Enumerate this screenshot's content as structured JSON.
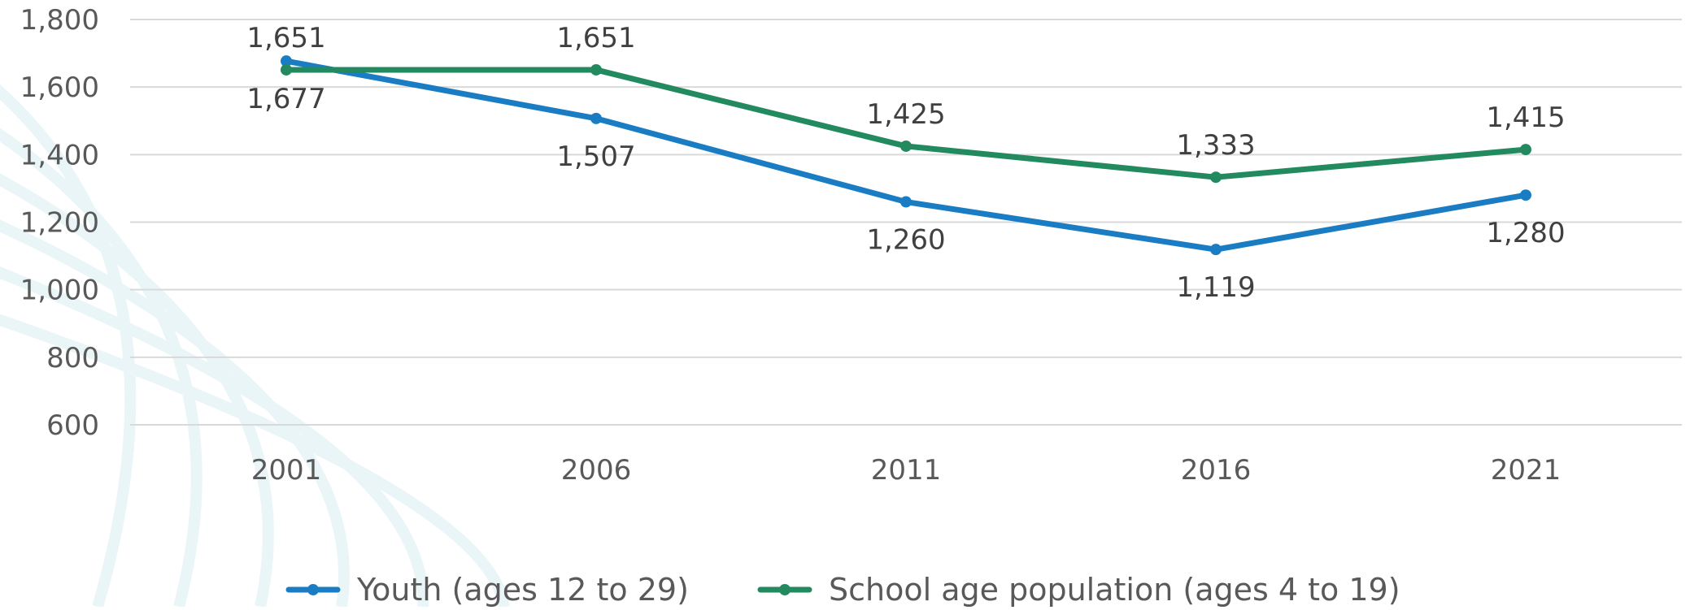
{
  "chart_data": {
    "type": "line",
    "title": "",
    "xlabel": "",
    "ylabel": "",
    "categories": [
      "2001",
      "2006",
      "2011",
      "2016",
      "2021"
    ],
    "ylim": [
      600,
      1800
    ],
    "yticks": [
      600,
      800,
      1000,
      1200,
      1400,
      1600,
      1800
    ],
    "ytick_labels": [
      "600",
      "800",
      "1,000",
      "1,200",
      "1,400",
      "1,600",
      "1,800"
    ],
    "grid": true,
    "legend_position": "bottom",
    "series": [
      {
        "name": "Youth (ages 12 to 29)",
        "color": "#1a7dc4",
        "values": [
          1677,
          1507,
          1260,
          1119,
          1280
        ],
        "labels": [
          "1,677",
          "1,507",
          "1,260",
          "1,119",
          "1,280"
        ],
        "label_position": "below"
      },
      {
        "name": "School age population (ages 4 to 19)",
        "color": "#228a5e",
        "values": [
          1651,
          1651,
          1425,
          1333,
          1415
        ],
        "labels": [
          "1,651",
          "1,651",
          "1,425",
          "1,333",
          "1,415"
        ],
        "label_position": "above"
      }
    ]
  }
}
